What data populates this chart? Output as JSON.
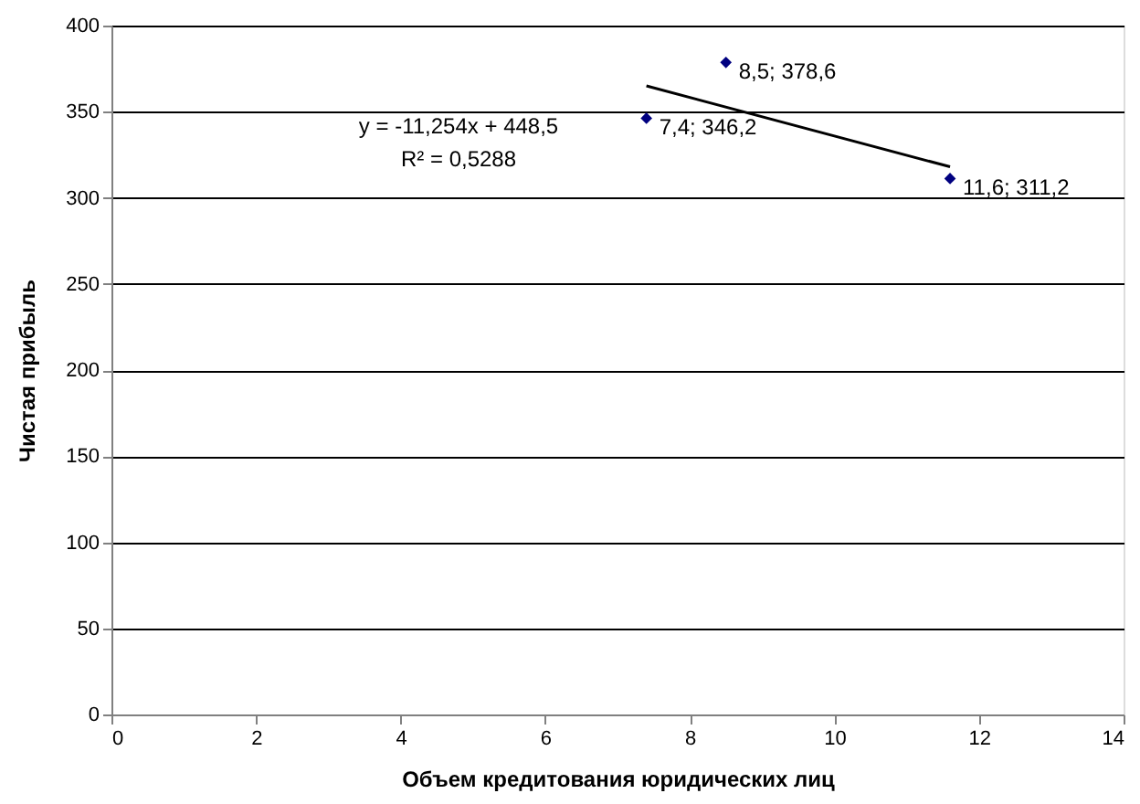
{
  "chart_data": {
    "type": "scatter",
    "xlabel": "Объем кредитования юридических лиц",
    "ylabel": "Чистая прибыль",
    "xlim": [
      0,
      14
    ],
    "xticks": [
      0,
      2,
      4,
      6,
      8,
      10,
      12,
      14
    ],
    "ylim": [
      0,
      400
    ],
    "yticks": [
      0,
      50,
      100,
      150,
      200,
      250,
      300,
      350,
      400
    ],
    "grid": "y",
    "marker": "diamond",
    "series": [
      {
        "color": "#000080",
        "x": [
          7.4,
          8.5,
          11.6
        ],
        "values": [
          346.2,
          378.6,
          311.2
        ],
        "value_labels": [
          "7,4; 346,2",
          "8,5; 378,6",
          "11,6; 311,2"
        ]
      },
      {
        "type": "line",
        "color": "#000000",
        "x": [
          7.4,
          11.6
        ],
        "values": [
          365,
          318
        ],
        "line_style": "solid",
        "marker": "none"
      }
    ],
    "annotations": [
      "y = -11,254x + 448,5",
      "R² = 0,5288"
    ]
  }
}
